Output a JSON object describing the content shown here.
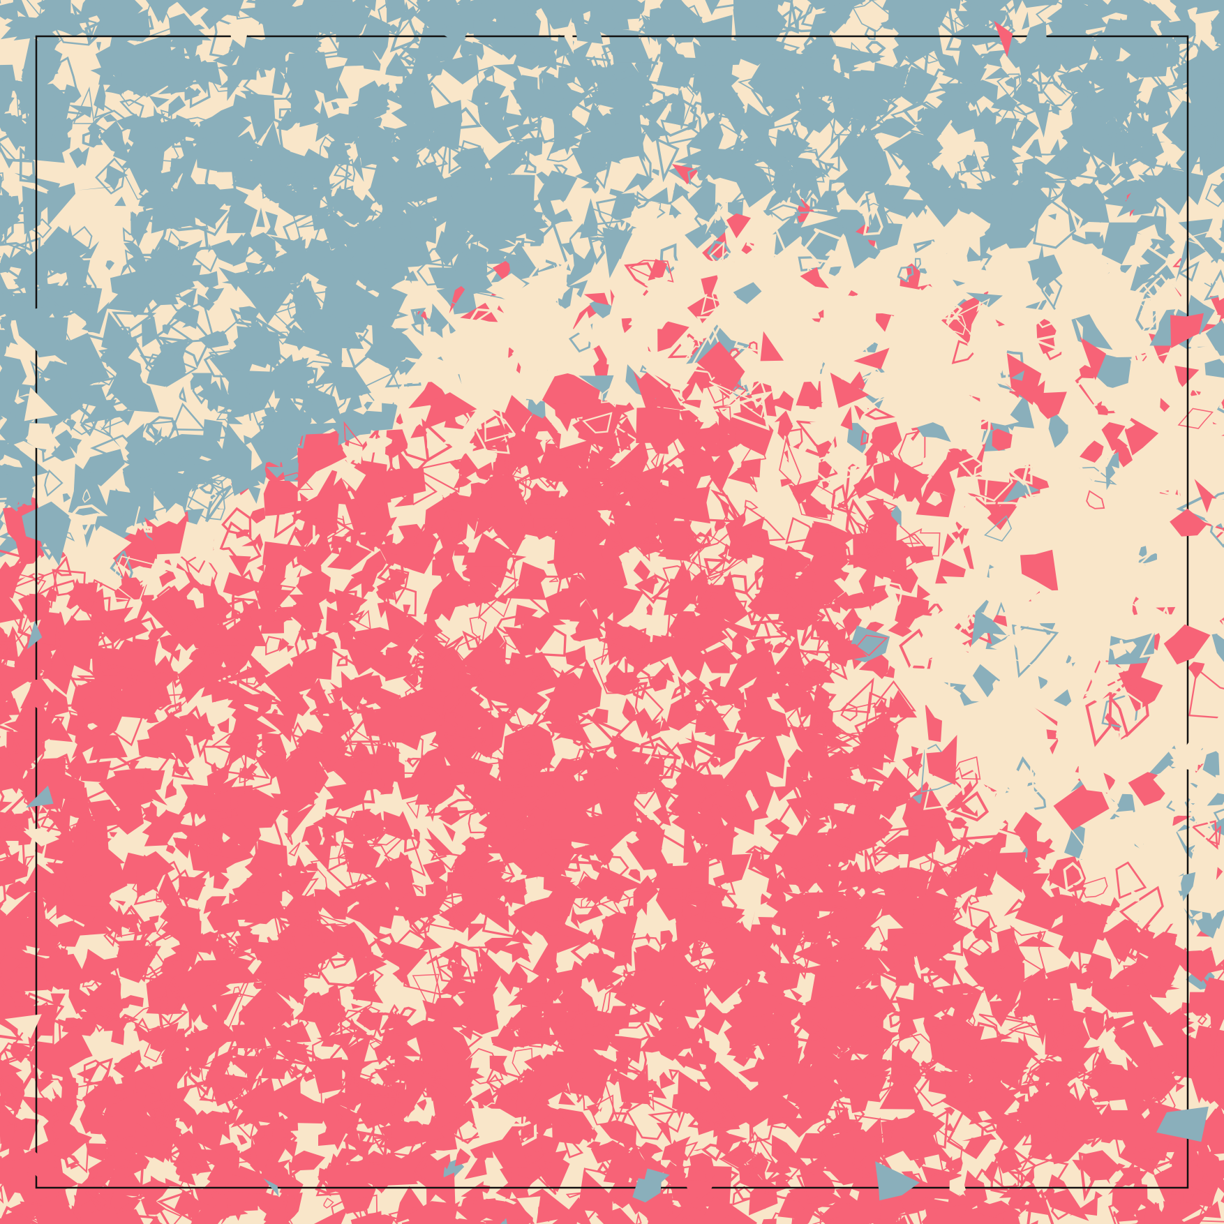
{
  "artwork": {
    "kind": "generative-pattern",
    "background_color": "#f9e6c9",
    "palette": {
      "cream": "#f9e6c9",
      "red": "#f76377",
      "blue": "#8aafbb",
      "frame": "#111111"
    },
    "frame": {
      "visible": true
    }
  }
}
